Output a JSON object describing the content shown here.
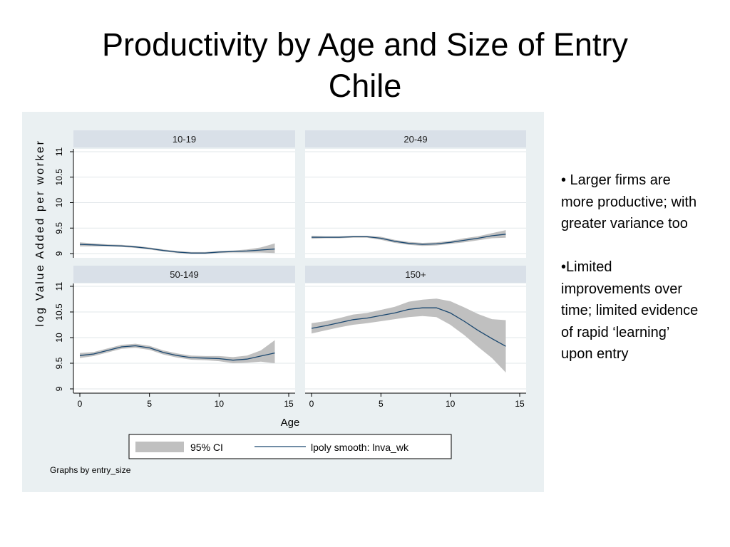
{
  "slide": {
    "title_line1": "Productivity by Age and Size of Entry",
    "title_line2": "Chile"
  },
  "bullets": [
    "•  Larger firms are more productive; with greater variance too",
    "•Limited improvements over time; limited evidence of rapid ‘learning’ upon entry"
  ],
  "chart_data": {
    "type": "line",
    "layout": "2x2 small multiples",
    "ylabel": "log Value Added per worker",
    "xlabel": "Age",
    "xlim": [
      0,
      15
    ],
    "ylim": [
      9,
      11
    ],
    "x_ticks": [
      "0",
      "5",
      "10",
      "15"
    ],
    "y_ticks": [
      "9",
      "9.5",
      "10",
      "10.5",
      "11"
    ],
    "y_tick_texts": [
      "9",
      "9.5",
      "10",
      "10.5",
      "11"
    ],
    "legend": {
      "ci_label": "95% CI",
      "line_label": "lpoly smooth: lnva_wk"
    },
    "note": "Graphs by entry_size",
    "colors": {
      "line": "#1a476f",
      "ci": "#c0c0c0",
      "strip": "#d9e0e8",
      "figure_bg": "#eaf0f2",
      "grid": "#e2e7ea"
    },
    "panels": [
      {
        "title": "10-19",
        "x": [
          0,
          1,
          2,
          3,
          4,
          5,
          6,
          7,
          8,
          9,
          10,
          11,
          12,
          13,
          14
        ],
        "values": [
          9.18,
          9.17,
          9.16,
          9.15,
          9.13,
          9.1,
          9.06,
          9.03,
          9.01,
          9.01,
          9.03,
          9.04,
          9.05,
          9.07,
          9.09
        ],
        "ci_low": [
          9.14,
          9.14,
          9.14,
          9.13,
          9.11,
          9.08,
          9.04,
          9.01,
          8.99,
          8.99,
          9.01,
          9.02,
          9.02,
          9.02,
          9.01
        ],
        "ci_high": [
          9.22,
          9.2,
          9.18,
          9.17,
          9.15,
          9.12,
          9.08,
          9.05,
          9.03,
          9.03,
          9.05,
          9.06,
          9.08,
          9.12,
          9.2
        ]
      },
      {
        "title": "20-49",
        "x": [
          0,
          1,
          2,
          3,
          4,
          5,
          6,
          7,
          8,
          9,
          10,
          11,
          12,
          13,
          14
        ],
        "values": [
          9.32,
          9.32,
          9.32,
          9.33,
          9.33,
          9.3,
          9.24,
          9.2,
          9.18,
          9.19,
          9.22,
          9.26,
          9.3,
          9.35,
          9.38
        ],
        "ci_low": [
          9.29,
          9.3,
          9.3,
          9.31,
          9.31,
          9.27,
          9.21,
          9.17,
          9.15,
          9.16,
          9.19,
          9.22,
          9.26,
          9.3,
          9.31
        ],
        "ci_high": [
          9.35,
          9.34,
          9.34,
          9.35,
          9.35,
          9.33,
          9.27,
          9.23,
          9.21,
          9.22,
          9.25,
          9.3,
          9.34,
          9.4,
          9.46
        ]
      },
      {
        "title": "50-149",
        "x": [
          0,
          1,
          2,
          3,
          4,
          5,
          6,
          7,
          8,
          9,
          10,
          11,
          12,
          13,
          14
        ],
        "values": [
          9.65,
          9.68,
          9.75,
          9.82,
          9.84,
          9.8,
          9.71,
          9.65,
          9.61,
          9.6,
          9.59,
          9.56,
          9.58,
          9.64,
          9.7
        ],
        "ci_low": [
          9.6,
          9.64,
          9.71,
          9.78,
          9.8,
          9.76,
          9.67,
          9.61,
          9.57,
          9.56,
          9.54,
          9.5,
          9.51,
          9.53,
          9.5
        ],
        "ci_high": [
          9.7,
          9.72,
          9.79,
          9.86,
          9.88,
          9.84,
          9.75,
          9.69,
          9.65,
          9.64,
          9.64,
          9.62,
          9.65,
          9.75,
          9.95
        ]
      },
      {
        "title": "150+",
        "x": [
          0,
          1,
          2,
          3,
          4,
          5,
          6,
          7,
          8,
          9,
          10,
          11,
          12,
          13,
          14
        ],
        "values": [
          10.18,
          10.23,
          10.29,
          10.35,
          10.38,
          10.43,
          10.48,
          10.55,
          10.58,
          10.58,
          10.48,
          10.32,
          10.14,
          9.98,
          9.83
        ],
        "ci_low": [
          10.08,
          10.14,
          10.2,
          10.25,
          10.28,
          10.32,
          10.36,
          10.4,
          10.42,
          10.4,
          10.25,
          10.05,
          9.82,
          9.6,
          9.32
        ],
        "ci_high": [
          10.28,
          10.32,
          10.38,
          10.45,
          10.48,
          10.54,
          10.6,
          10.7,
          10.74,
          10.76,
          10.71,
          10.59,
          10.46,
          10.36,
          10.34
        ]
      }
    ]
  }
}
